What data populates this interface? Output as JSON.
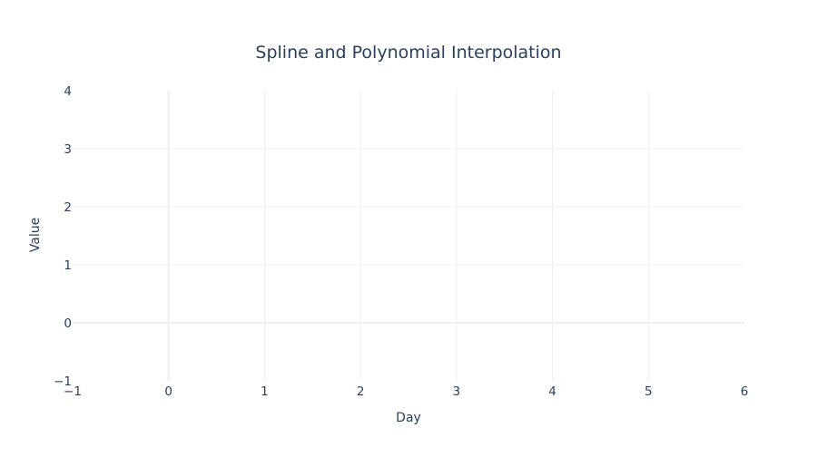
{
  "chart_data": {
    "type": "line",
    "title": "Spline and Polynomial Interpolation",
    "xlabel": "Day",
    "ylabel": "Value",
    "xlim": [
      -1,
      6
    ],
    "ylim": [
      -1,
      4
    ],
    "x_ticks": [
      -1,
      0,
      1,
      2,
      3,
      4,
      5,
      6
    ],
    "y_ticks": [
      -1,
      0,
      1,
      2,
      3,
      4
    ],
    "x_tick_labels": [
      "−1",
      "0",
      "1",
      "2",
      "3",
      "4",
      "5",
      "6"
    ],
    "y_tick_labels": [
      "−1",
      "0",
      "1",
      "2",
      "3",
      "4"
    ],
    "grid": true,
    "series": []
  },
  "colors": {
    "background": "#ffffff",
    "grid": "#ebf0f8",
    "zeroline": "#ebf0f8",
    "text": "#2a3f5f"
  }
}
